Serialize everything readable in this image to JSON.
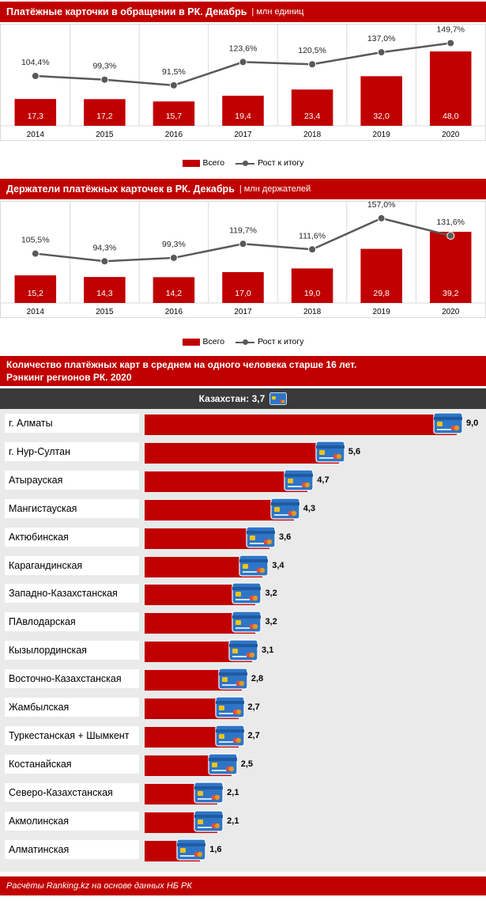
{
  "colors": {
    "accent": "#c00000",
    "line": "#595959",
    "dark_bar": "#3a3a3a",
    "card": "#2e75c7"
  },
  "chart1": {
    "title": "Платёжные карточки в обращении в РК. Декабрь",
    "unit": "| млн единиц",
    "legend": {
      "bar": "Всего",
      "line": "Рост к итогу"
    }
  },
  "chart2": {
    "title": "Держатели платёжных карточек в РК. Декабрь",
    "unit": "| млн держателей",
    "legend": {
      "bar": "Всего",
      "line": "Рост к итогу"
    }
  },
  "ranking": {
    "title_line1": "Количество платёжных карт в среднем на одного человека старше 16 лет.",
    "title_line2": "Рэнкинг регионов РК. 2020",
    "kazakhstan_label": "Казахстан: 3,7",
    "rows": [
      {
        "name": "г. Алматы",
        "value_label": "9,0"
      },
      {
        "name": "г. Нур-Султан",
        "value_label": "5,6"
      },
      {
        "name": "Атырауская",
        "value_label": "4,7"
      },
      {
        "name": "Мангистауская",
        "value_label": "4,3"
      },
      {
        "name": "Актюбинская",
        "value_label": "3,6"
      },
      {
        "name": "Карагандинская",
        "value_label": "3,4"
      },
      {
        "name": "Западно-Казахстанская",
        "value_label": "3,2"
      },
      {
        "name": "ПАвлодарская",
        "value_label": "3,2"
      },
      {
        "name": "Кызылординская",
        "value_label": "3,1"
      },
      {
        "name": "Восточно-Казахстанская",
        "value_label": "2,8"
      },
      {
        "name": "Жамбылская",
        "value_label": "2,7"
      },
      {
        "name": "Туркестанская + Шымкент",
        "value_label": "2,7"
      },
      {
        "name": "Костанайская",
        "value_label": "2,5"
      },
      {
        "name": "Северо-Казахстанская",
        "value_label": "2,1"
      },
      {
        "name": "Акмолинская",
        "value_label": "2,1"
      },
      {
        "name": "Алматинская",
        "value_label": "1,6"
      }
    ]
  },
  "footer": {
    "text": "Расчёты Ranking.kz на основе данных НБ РК"
  },
  "chart_data": [
    {
      "type": "bar",
      "title": "Платёжные карточки в обращении в РК. Декабрь",
      "unit": "млн единиц",
      "categories": [
        "2014",
        "2015",
        "2016",
        "2017",
        "2018",
        "2019",
        "2020"
      ],
      "series": [
        {
          "name": "Всего",
          "type": "bar",
          "values": [
            17.3,
            17.2,
            15.7,
            19.4,
            23.4,
            32.0,
            48.0
          ],
          "labels": [
            "17,3",
            "17,2",
            "15,7",
            "19,4",
            "23,4",
            "32,0",
            "48,0"
          ]
        },
        {
          "name": "Рост к итогу",
          "type": "line",
          "values": [
            104.4,
            99.3,
            91.5,
            123.6,
            120.5,
            137.0,
            149.7
          ],
          "labels": [
            "104,4%",
            "99,3%",
            "91,5%",
            "123,6%",
            "120,5%",
            "137,0%",
            "149,7%"
          ]
        }
      ],
      "bar_max": 48.0,
      "line_range": [
        75,
        160
      ],
      "grid": true,
      "legend_position": "bottom"
    },
    {
      "type": "bar",
      "title": "Держатели платёжных карточек в РК. Декабрь",
      "unit": "млн держателей",
      "categories": [
        "2014",
        "2015",
        "2016",
        "2017",
        "2018",
        "2019",
        "2020"
      ],
      "series": [
        {
          "name": "Всего",
          "type": "bar",
          "values": [
            15.2,
            14.3,
            14.2,
            17.0,
            19.0,
            29.8,
            39.2
          ],
          "labels": [
            "15,2",
            "14,3",
            "14,2",
            "17,0",
            "19,0",
            "29,8",
            "39,2"
          ]
        },
        {
          "name": "Рост к итогу",
          "type": "line",
          "values": [
            105.5,
            94.3,
            99.3,
            119.7,
            111.6,
            157.0,
            131.6
          ],
          "labels": [
            "105,5%",
            "94,3%",
            "99,3%",
            "119,7%",
            "111,6%",
            "157,0%",
            "131,6%"
          ]
        }
      ],
      "bar_max": 39.2,
      "line_range": [
        75,
        165
      ],
      "grid": true,
      "legend_position": "bottom"
    },
    {
      "type": "bar",
      "orientation": "horizontal",
      "title": "Количество платёжных карт в среднем на одного человека старше 16 лет. Рэнкинг регионов РК. 2020",
      "reference": {
        "label": "Казахстан",
        "value": 3.7
      },
      "categories": [
        "г. Алматы",
        "г. Нур-Султан",
        "Атырауская",
        "Мангистауская",
        "Актюбинская",
        "Карагандинская",
        "Западно-Казахстанская",
        "ПАвлодарская",
        "Кызылординская",
        "Восточно-Казахстанская",
        "Жамбылская",
        "Туркестанская + Шымкент",
        "Костанайская",
        "Северо-Казахстанская",
        "Акмолинская",
        "Алматинская"
      ],
      "values": [
        9.0,
        5.6,
        4.7,
        4.3,
        3.6,
        3.4,
        3.2,
        3.2,
        3.1,
        2.8,
        2.7,
        2.7,
        2.5,
        2.1,
        2.1,
        1.6
      ],
      "xlim": [
        0,
        9.0
      ]
    }
  ]
}
